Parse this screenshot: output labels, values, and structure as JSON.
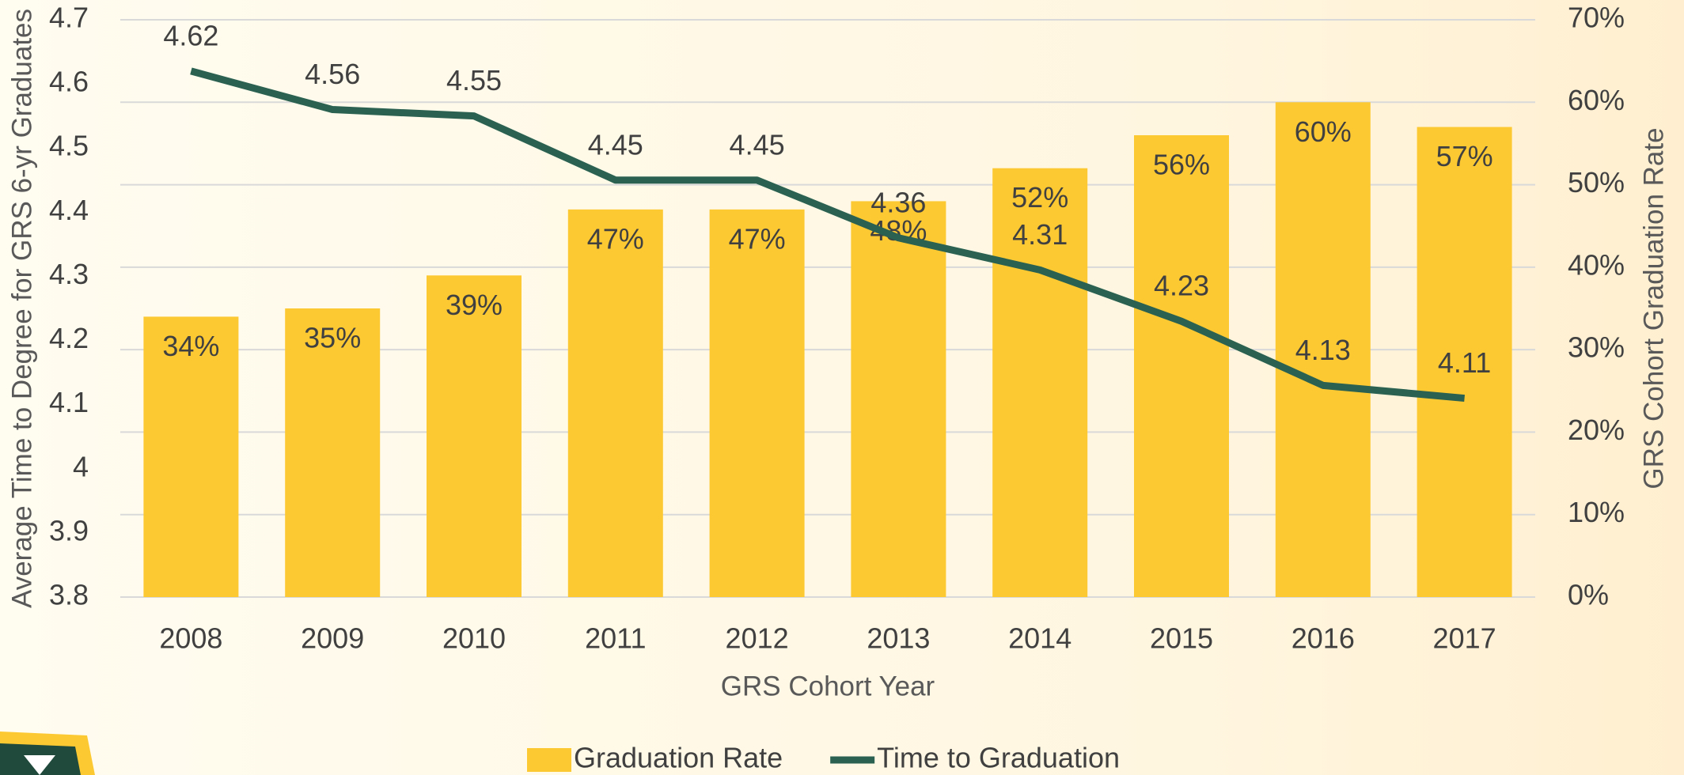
{
  "chart_data": {
    "type": "bar",
    "categories": [
      "2008",
      "2009",
      "2010",
      "2011",
      "2012",
      "2013",
      "2014",
      "2015",
      "2016",
      "2017"
    ],
    "x_label": "GRS Cohort Year",
    "y_label": "Average Time to Degree for GRS 6-yr Graduates",
    "y2_label": "GRS Cohort Graduation Rate",
    "ylim": [
      3.8,
      4.7
    ],
    "yticks": [
      3.8,
      3.9,
      4,
      4.1,
      4.2,
      4.3,
      4.4,
      4.5,
      4.6,
      4.7
    ],
    "y2lim": [
      0,
      70
    ],
    "y2ticks": [
      {
        "value": 0,
        "label": "0%"
      },
      {
        "value": 10,
        "label": "10%"
      },
      {
        "value": 20,
        "label": "20%"
      },
      {
        "value": 30,
        "label": "30%"
      },
      {
        "value": 40,
        "label": "40%"
      },
      {
        "value": 50,
        "label": "50%"
      },
      {
        "value": 60,
        "label": "60%"
      },
      {
        "value": 70,
        "label": "70%"
      }
    ],
    "grid": true,
    "legend": "bottom",
    "series": [
      {
        "name": "Graduation Rate",
        "type": "bar",
        "axis": "y2",
        "color": "#fdc933",
        "values": [
          34,
          35,
          39,
          47,
          47,
          48,
          52,
          56,
          60,
          57
        ],
        "value_labels": [
          "34%",
          "35%",
          "39%",
          "47%",
          "47%",
          "48%",
          "52%",
          "56%",
          "60%",
          "57%"
        ]
      },
      {
        "name": "Time to Graduation",
        "type": "line",
        "axis": "y",
        "color": "#2a6151",
        "values": [
          4.62,
          4.56,
          4.55,
          4.45,
          4.45,
          4.36,
          4.31,
          4.23,
          4.13,
          4.11
        ]
      }
    ]
  }
}
